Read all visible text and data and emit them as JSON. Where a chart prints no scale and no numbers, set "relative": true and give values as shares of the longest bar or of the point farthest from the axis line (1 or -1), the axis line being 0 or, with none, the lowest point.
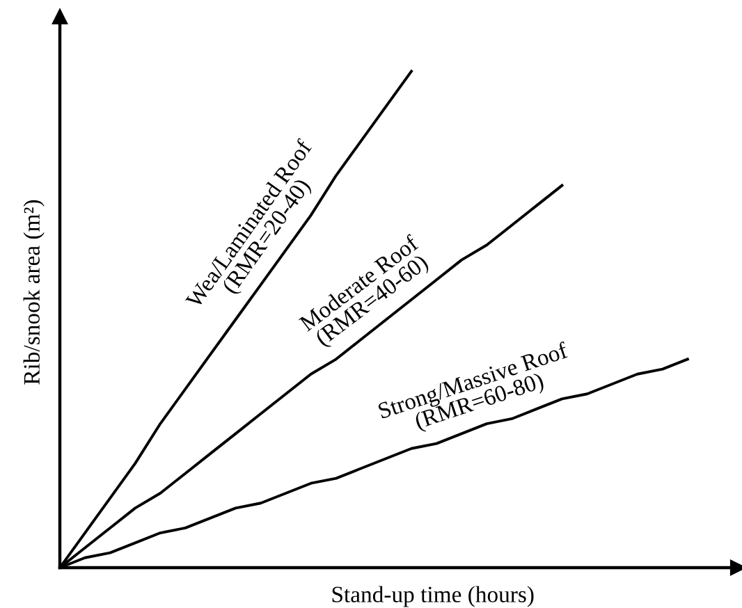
{
  "chart_data": {
    "type": "line",
    "relative": true,
    "xlabel": "Stand-up time (hours)",
    "ylabel": "Rib/snook area (m²)",
    "categories": [
      null,
      null,
      null,
      null,
      null,
      null,
      null,
      null,
      null,
      null,
      null,
      null,
      null,
      null,
      null,
      null,
      null,
      null,
      null,
      null,
      null,
      null,
      null,
      null,
      null,
      null
    ],
    "legend": false,
    "marker": "none",
    "line_style": "solid",
    "series": [
      {
        "color": "#000000",
        "values": [
          0,
          0.07,
          0.14,
          0.21,
          0.29,
          0.36,
          0.43,
          0.5,
          0.57,
          0.64,
          0.71,
          0.79,
          0.86,
          0.93,
          1,
          null,
          null,
          null,
          null,
          null,
          null,
          null,
          null,
          null,
          null,
          null
        ]
      },
      {
        "color": "#000000",
        "values": [
          0,
          0.04,
          0.08,
          0.12,
          0.15,
          0.19,
          0.23,
          0.27,
          0.31,
          0.35,
          0.39,
          0.42,
          0.46,
          0.5,
          0.54,
          0.58,
          0.62,
          0.65,
          0.69,
          0.73,
          0.77,
          null,
          null,
          null,
          null,
          null
        ]
      },
      {
        "color": "#000000",
        "values": [
          0,
          0.02,
          0.03,
          0.05,
          0.07,
          0.08,
          0.1,
          0.12,
          0.13,
          0.15,
          0.17,
          0.18,
          0.2,
          0.22,
          0.24,
          0.25,
          0.27,
          0.29,
          0.3,
          0.32,
          0.34,
          0.35,
          0.37,
          0.39,
          0.4,
          0.42
        ]
      }
    ],
    "annotations": [
      "Wea/Laminated Roof\n(RMR=20-40)",
      "Moderate Roof\n(RMR=40-60)",
      "Strong/Massive Roof\n(RMR=60-80)"
    ]
  }
}
